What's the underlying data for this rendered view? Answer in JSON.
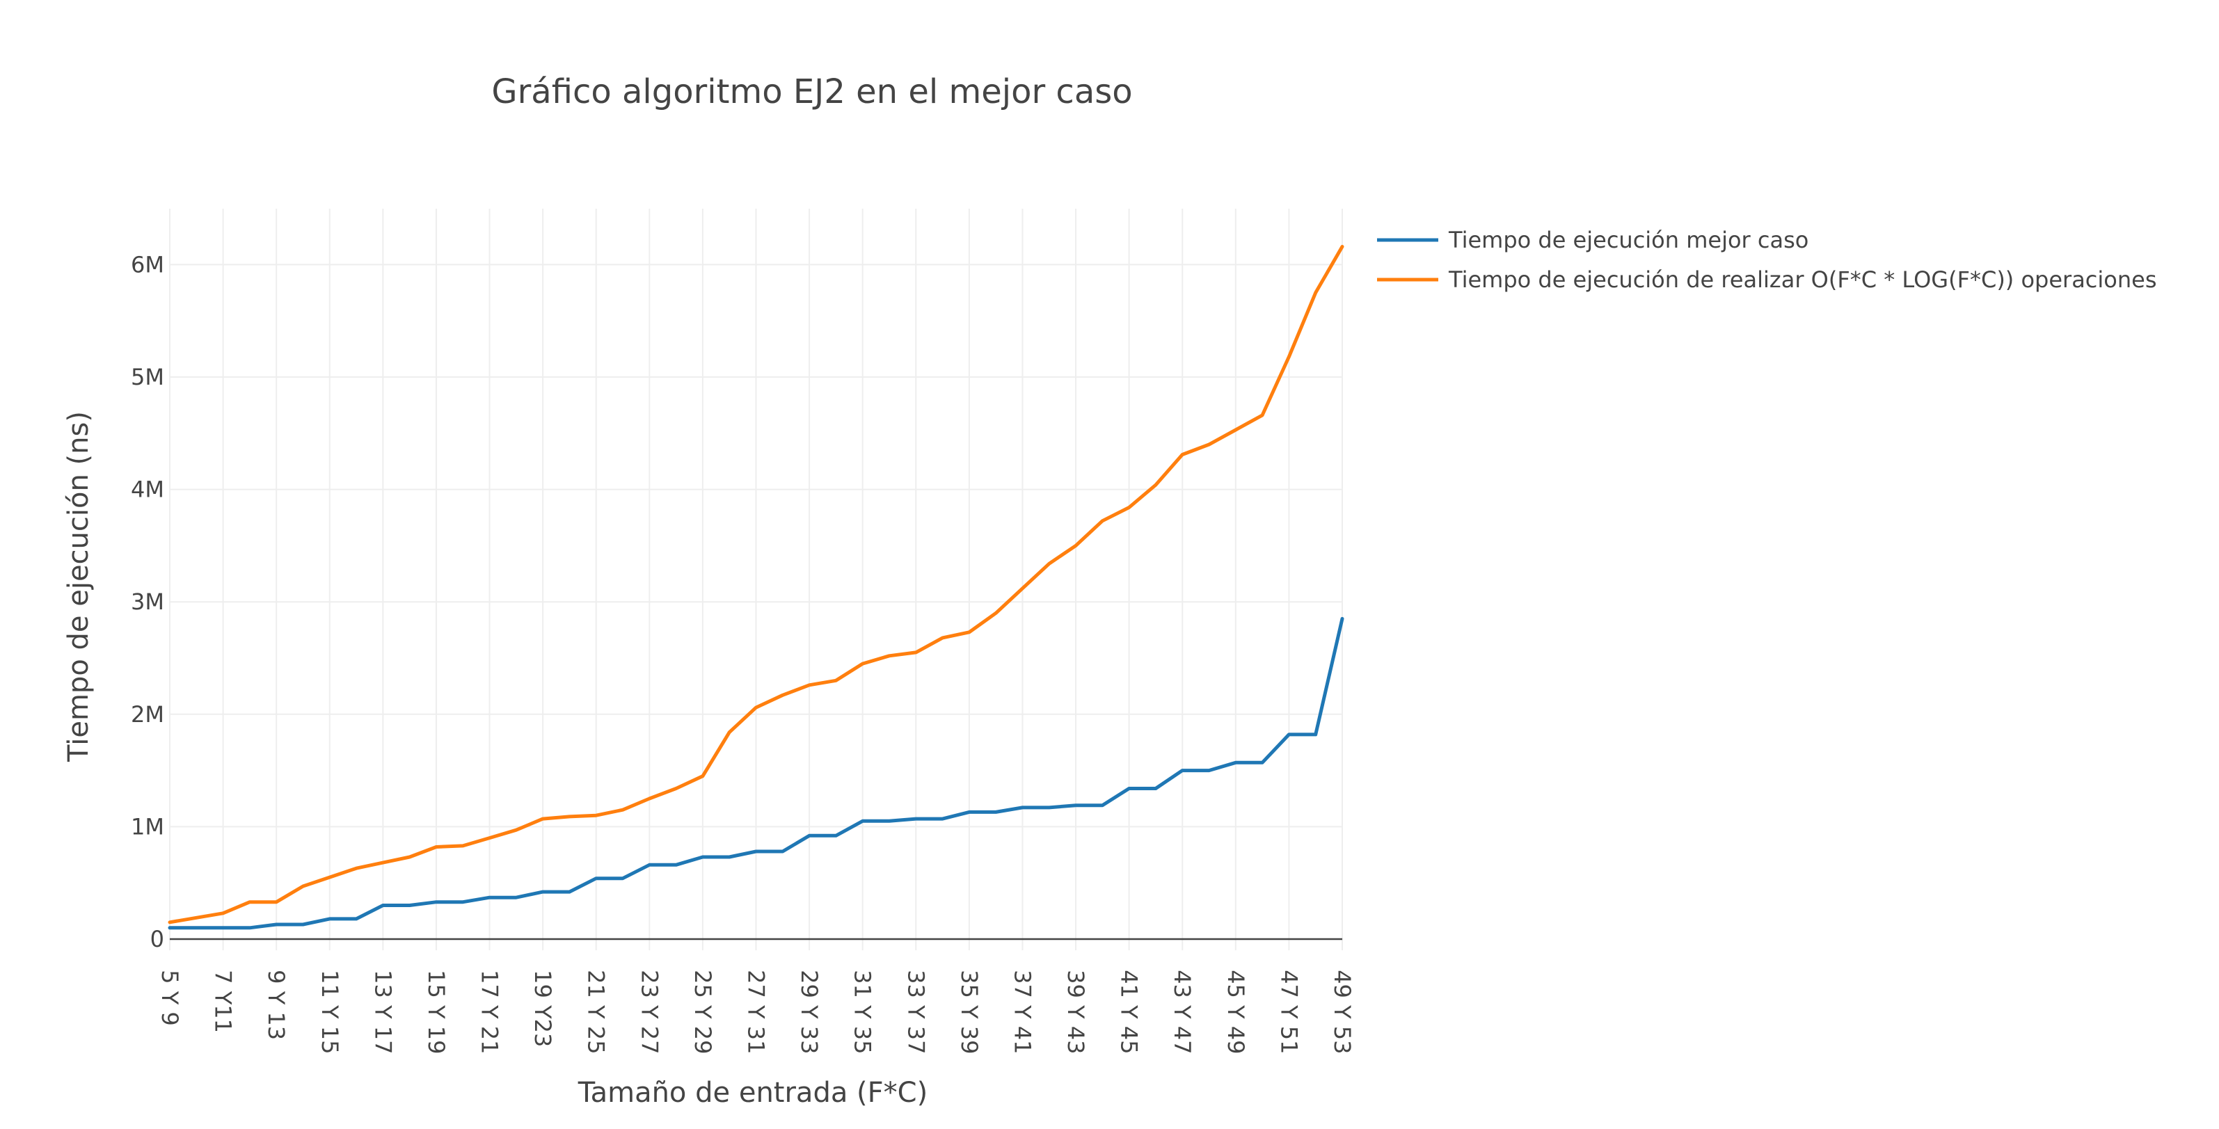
{
  "chart_data": {
    "type": "line",
    "title": "Gráfico algoritmo EJ2 en el mejor caso",
    "xlabel": "Tamaño de entrada (F*C)",
    "ylabel": "Tiempo de ejecución (ns)",
    "ylim": [
      -100000,
      6500000
    ],
    "y_ticks": [
      {
        "value": 0,
        "label": "0"
      },
      {
        "value": 1000000,
        "label": "1M"
      },
      {
        "value": 2000000,
        "label": "2M"
      },
      {
        "value": 3000000,
        "label": "3M"
      },
      {
        "value": 4000000,
        "label": "4M"
      },
      {
        "value": 5000000,
        "label": "5M"
      },
      {
        "value": 6000000,
        "label": "6M"
      }
    ],
    "x_tick_labels": [
      "5 Y 9",
      "7 Y11",
      "9 Y 13",
      "11 Y 15",
      "13 Y 17",
      "15 Y 19",
      "17 Y 21",
      "19 Y23",
      "21 Y 25",
      "23 Y 27",
      "25 Y 29",
      "27 Y 31",
      "29 Y 33",
      "31 Y 35",
      "33 Y 37",
      "35 Y 39",
      "37 Y 41",
      "39 Y 43",
      "41 Y 45",
      "43 Y 47",
      "45 Y 49",
      "47 Y 51",
      "49 Y 53"
    ],
    "grid": true,
    "legend_position": "top-right",
    "series": [
      {
        "name": "Tiempo de ejecución mejor caso",
        "color": "#1f77b4",
        "values": [
          100000,
          100000,
          100000,
          100000,
          130000,
          130000,
          180000,
          180000,
          300000,
          300000,
          330000,
          330000,
          370000,
          370000,
          420000,
          420000,
          540000,
          540000,
          660000,
          660000,
          730000,
          730000,
          780000,
          780000,
          920000,
          920000,
          1050000,
          1050000,
          1070000,
          1070000,
          1130000,
          1130000,
          1170000,
          1170000,
          1190000,
          1190000,
          1340000,
          1340000,
          1500000,
          1500000,
          1570000,
          1570000,
          1820000,
          1820000,
          2850000
        ]
      },
      {
        "name": "Tiempo de ejecución de realizar O(F*C * LOG(F*C)) operaciones",
        "color": "#ff7f0e",
        "values": [
          150000,
          190000,
          230000,
          330000,
          330000,
          470000,
          550000,
          630000,
          680000,
          730000,
          820000,
          830000,
          900000,
          970000,
          1070000,
          1090000,
          1100000,
          1150000,
          1250000,
          1340000,
          1450000,
          1840000,
          2060000,
          2170000,
          2260000,
          2300000,
          2450000,
          2520000,
          2550000,
          2680000,
          2730000,
          2900000,
          3120000,
          3340000,
          3500000,
          3720000,
          3840000,
          4040000,
          4310000,
          4400000,
          4530000,
          4660000,
          5180000,
          5750000,
          6160000
        ]
      }
    ]
  }
}
